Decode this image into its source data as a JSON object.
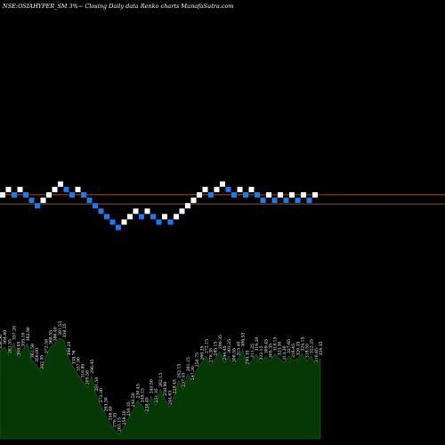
{
  "chart_data": {
    "type": "renko",
    "title": "NSE:OSIAHYPER_SM 3%~  Closing Daily data Renko charts MunafaSutra.com",
    "colors": {
      "background": "#000000",
      "up_brick": "#ffffff",
      "down_brick": "#1e78f0",
      "level_line": "#d2691e",
      "volume_fill": "#063806",
      "volume_outline": "#1c6a1c"
    },
    "level_lines": [
      1,
      -1
    ],
    "bricks": [
      {
        "level": 0,
        "dir": "up"
      },
      {
        "level": 1,
        "dir": "up"
      },
      {
        "level": 0,
        "dir": "down"
      },
      {
        "level": 1,
        "dir": "up"
      },
      {
        "level": 0,
        "dir": "down"
      },
      {
        "level": -1,
        "dir": "down"
      },
      {
        "level": -2,
        "dir": "down"
      },
      {
        "level": -1,
        "dir": "up"
      },
      {
        "level": 0,
        "dir": "up"
      },
      {
        "level": 1,
        "dir": "up"
      },
      {
        "level": 2,
        "dir": "up"
      },
      {
        "level": 1,
        "dir": "down"
      },
      {
        "level": 0,
        "dir": "down"
      },
      {
        "level": 1,
        "dir": "up"
      },
      {
        "level": 0,
        "dir": "down"
      },
      {
        "level": -1,
        "dir": "down"
      },
      {
        "level": -2,
        "dir": "down"
      },
      {
        "level": -3,
        "dir": "down"
      },
      {
        "level": -4,
        "dir": "down"
      },
      {
        "level": -5,
        "dir": "down"
      },
      {
        "level": -6,
        "dir": "down"
      },
      {
        "level": -5,
        "dir": "up"
      },
      {
        "level": -4,
        "dir": "up"
      },
      {
        "level": -3,
        "dir": "up"
      },
      {
        "level": -4,
        "dir": "down"
      },
      {
        "level": -3,
        "dir": "up"
      },
      {
        "level": -4,
        "dir": "down"
      },
      {
        "level": -5,
        "dir": "down"
      },
      {
        "level": -4,
        "dir": "up"
      },
      {
        "level": -5,
        "dir": "down"
      },
      {
        "level": -4,
        "dir": "up"
      },
      {
        "level": -3,
        "dir": "up"
      },
      {
        "level": -2,
        "dir": "up"
      },
      {
        "level": -1,
        "dir": "up"
      },
      {
        "level": 0,
        "dir": "up"
      },
      {
        "level": 1,
        "dir": "up"
      },
      {
        "level": 0,
        "dir": "down"
      },
      {
        "level": 1,
        "dir": "up"
      },
      {
        "level": 2,
        "dir": "up"
      },
      {
        "level": 1,
        "dir": "down"
      },
      {
        "level": 0,
        "dir": "down"
      },
      {
        "level": 1,
        "dir": "up"
      },
      {
        "level": 0,
        "dir": "down"
      },
      {
        "level": 1,
        "dir": "up"
      },
      {
        "level": 0,
        "dir": "down"
      },
      {
        "level": -1,
        "dir": "down"
      },
      {
        "level": 0,
        "dir": "up"
      },
      {
        "level": -1,
        "dir": "down"
      },
      {
        "level": 0,
        "dir": "up"
      },
      {
        "level": -1,
        "dir": "down"
      },
      {
        "level": 0,
        "dir": "up"
      },
      {
        "level": -1,
        "dir": "down"
      },
      {
        "level": 0,
        "dir": "up"
      },
      {
        "level": -1,
        "dir": "down"
      },
      {
        "level": 0,
        "dir": "up"
      }
    ],
    "volume_area": [
      78,
      82,
      74,
      86,
      72,
      80,
      85,
      70,
      66,
      60,
      74,
      82,
      85,
      90,
      88,
      72,
      64,
      58,
      52,
      46,
      56,
      40,
      30,
      22,
      14,
      8,
      4,
      10,
      18,
      26,
      34,
      30,
      22,
      38,
      30,
      44,
      36,
      28,
      38,
      52,
      44,
      58,
      50,
      62,
      68,
      74,
      66,
      72,
      78,
      68,
      74,
      66,
      72,
      80,
      64,
      70,
      76,
      68,
      74,
      70,
      76,
      72,
      68,
      74,
      70,
      72,
      76,
      70,
      74,
      66,
      72
    ],
    "volume_labels": [
      "358.56",
      "364.40",
      "361.55",
      "357.20",
      "368.05",
      "355.10",
      "362.90",
      "361.58",
      "350.00",
      "342.95",
      "372.58",
      "368.55",
      "386.40",
      "391.53",
      "358.25",
      "348.20",
      "338.76",
      "327.90",
      "316.80",
      "305.58",
      "296.45",
      "281.50",
      "272.30",
      "263.30",
      "256.40",
      "270.35",
      "263.15",
      "258.20",
      "250.35",
      "242.50",
      "230.45",
      "249.15",
      "238.40",
      "244.50",
      "251.35",
      "262.15",
      "258.90",
      "244.65",
      "228.45",
      "242.15",
      "237.45",
      "261.15",
      "247.30",
      "250.75",
      "266.25",
      "272.15",
      "278.35",
      "285.15",
      "290.35",
      "294.45",
      "301.25",
      "308.55",
      "315.40",
      "306.55",
      "299.35",
      "311.25",
      "316.20",
      "322.15",
      "309.45",
      "305.35",
      "318.15",
      "323.30",
      "313.20",
      "327.65",
      "316.45",
      "320.35",
      "324.15",
      "318.55",
      "322.25",
      "316.65",
      "324.35"
    ]
  }
}
